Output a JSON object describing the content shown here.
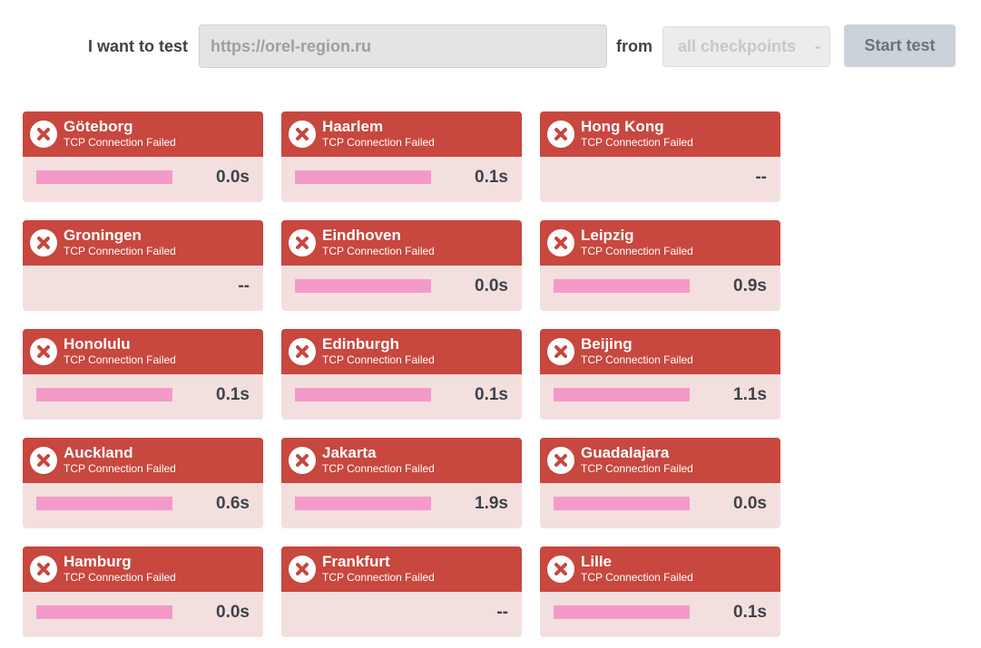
{
  "toolbar": {
    "test_label": "I want to test",
    "url_value": "https://orel-region.ru",
    "from_label": "from",
    "checkpoint_select": "all checkpoints",
    "start_button": "Start test"
  },
  "colors": {
    "header_red": "#c8473e",
    "body_pink": "#f4dfdf",
    "bar_pink": "#f49ac8"
  },
  "results": [
    {
      "city": "Göteborg",
      "status": "TCP Connection Failed",
      "time": "0.0s",
      "has_bar": true
    },
    {
      "city": "Haarlem",
      "status": "TCP Connection Failed",
      "time": "0.1s",
      "has_bar": true
    },
    {
      "city": "Hong Kong",
      "status": "TCP Connection Failed",
      "time": "--",
      "has_bar": false
    },
    {
      "city": "Groningen",
      "status": "TCP Connection Failed",
      "time": "--",
      "has_bar": false
    },
    {
      "city": "Eindhoven",
      "status": "TCP Connection Failed",
      "time": "0.0s",
      "has_bar": true
    },
    {
      "city": "Leipzig",
      "status": "TCP Connection Failed",
      "time": "0.9s",
      "has_bar": true
    },
    {
      "city": "Honolulu",
      "status": "TCP Connection Failed",
      "time": "0.1s",
      "has_bar": true
    },
    {
      "city": "Edinburgh",
      "status": "TCP Connection Failed",
      "time": "0.1s",
      "has_bar": true
    },
    {
      "city": "Beijing",
      "status": "TCP Connection Failed",
      "time": "1.1s",
      "has_bar": true
    },
    {
      "city": "Auckland",
      "status": "TCP Connection Failed",
      "time": "0.6s",
      "has_bar": true
    },
    {
      "city": "Jakarta",
      "status": "TCP Connection Failed",
      "time": "1.9s",
      "has_bar": true
    },
    {
      "city": "Guadalajara",
      "status": "TCP Connection Failed",
      "time": "0.0s",
      "has_bar": true
    },
    {
      "city": "Hamburg",
      "status": "TCP Connection Failed",
      "time": "0.0s",
      "has_bar": true
    },
    {
      "city": "Frankfurt",
      "status": "TCP Connection Failed",
      "time": "--",
      "has_bar": false
    },
    {
      "city": "Lille",
      "status": "TCP Connection Failed",
      "time": "0.1s",
      "has_bar": true
    }
  ]
}
